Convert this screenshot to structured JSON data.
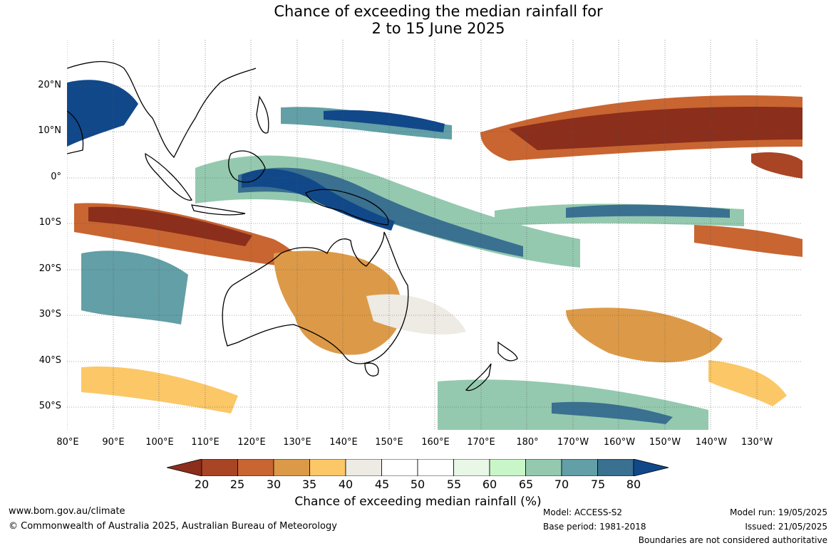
{
  "title": {
    "line1": "Chance of exceeding the median rainfall for",
    "line2": "2 to 15 June 2025"
  },
  "latitude_labels": [
    "20°N",
    "10°N",
    "0°",
    "10°S",
    "20°S",
    "30°S",
    "40°S",
    "50°S"
  ],
  "longitude_labels": [
    "80°E",
    "90°E",
    "100°E",
    "110°E",
    "120°E",
    "130°E",
    "140°E",
    "150°E",
    "160°E",
    "170°E",
    "180°",
    "170°W",
    "160°W",
    "150°W",
    "140°W",
    "130°W"
  ],
  "colorbar": {
    "title": "Chance of exceeding median rainfall (%)",
    "ticks": [
      "20",
      "25",
      "30",
      "35",
      "40",
      "45",
      "50",
      "55",
      "60",
      "65",
      "70",
      "75",
      "80"
    ],
    "colors": [
      "#8b2e1c",
      "#a94525",
      "#c96531",
      "#dc9a48",
      "#fbc767",
      "#edebe4",
      "#ffffff",
      "#ffffff",
      "#e8f7e6",
      "#c8f6c8",
      "#94c9af",
      "#629fa6",
      "#3a7090",
      "#114889"
    ]
  },
  "footer": {
    "website": "www.bom.gov.au/climate",
    "copyright": "© Commonwealth of Australia 2025, Australian Bureau of Meteorology",
    "model": "Model: ACCESS-S2",
    "base_period": "Base period: 1981-2018",
    "model_run": "Model run: 19/05/2025",
    "issued": "Issued: 21/05/2025",
    "disclaimer": "Boundaries are not considered authoritative"
  }
}
